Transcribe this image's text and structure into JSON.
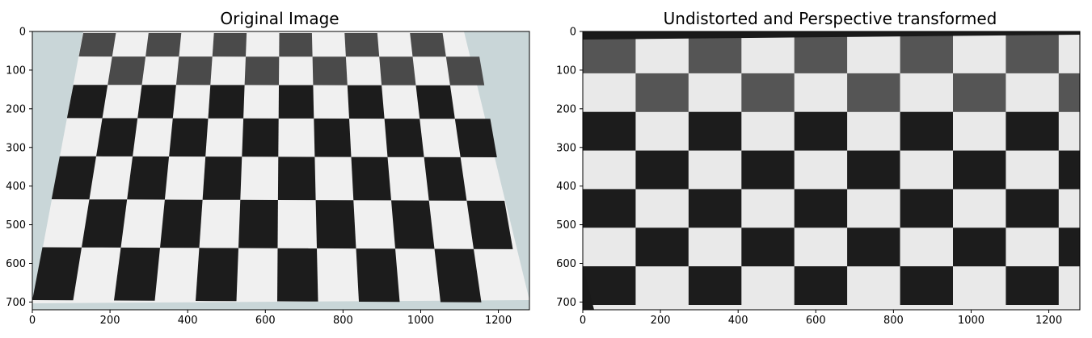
{
  "panels": [
    {
      "title": "Original Image",
      "x_ticks": [
        "0",
        "200",
        "400",
        "600",
        "800",
        "1000",
        "1200"
      ],
      "y_ticks": [
        "0",
        "100",
        "200",
        "300",
        "400",
        "500",
        "600",
        "700"
      ],
      "background_color": "#c9d6d8"
    },
    {
      "title": "Undistorted and Perspective transformed",
      "x_ticks": [
        "0",
        "200",
        "400",
        "600",
        "800",
        "1000",
        "1200"
      ],
      "y_ticks": [
        "0",
        "100",
        "200",
        "300",
        "400",
        "500",
        "600",
        "700"
      ],
      "background_color": "#1a1a1a"
    }
  ],
  "colors": {
    "dark_square": "#1c1c1c",
    "light_square": "#e9e9e9",
    "paper": "#f0f0f0",
    "frame": "#000000"
  }
}
